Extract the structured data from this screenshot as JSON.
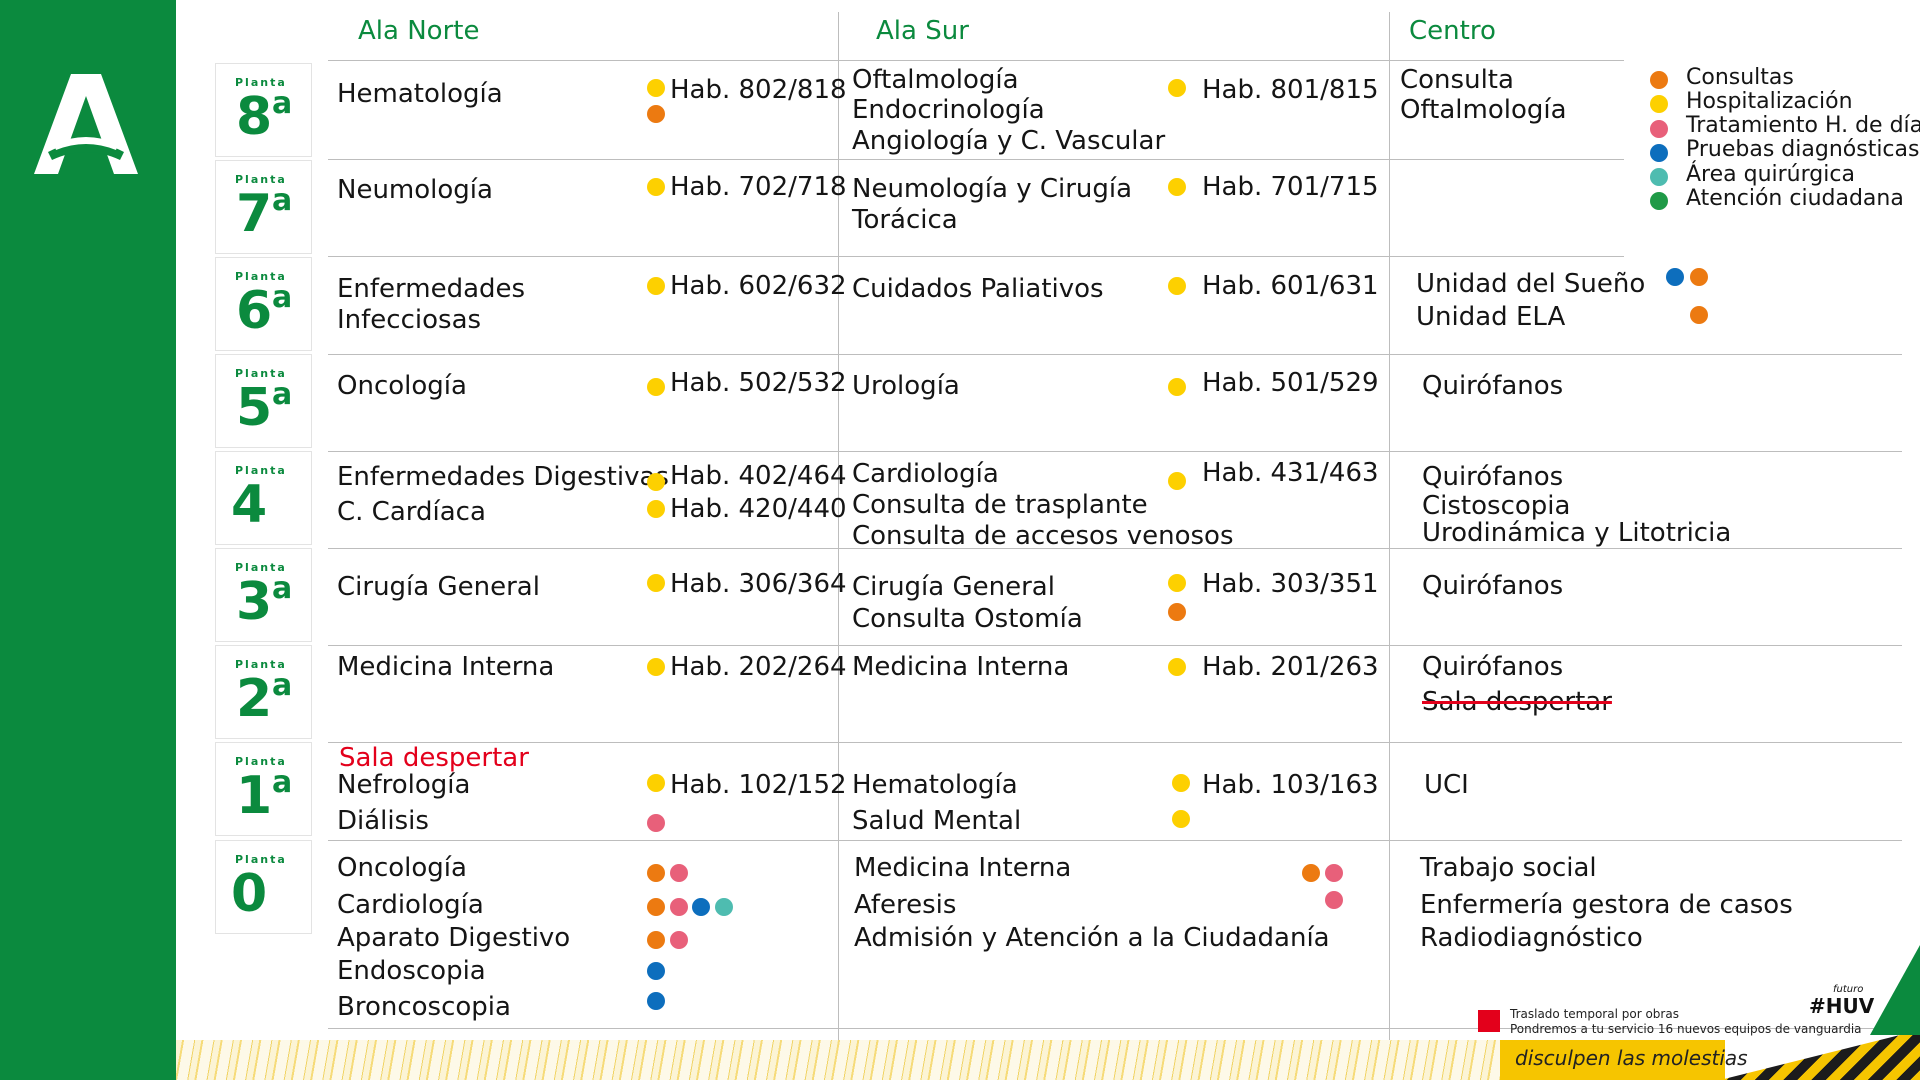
{
  "colors": {
    "green": "#0b8a3e",
    "consultas": "#ec7a11",
    "hospitalizacion": "#fdd000",
    "tratamiento": "#e8607a",
    "pruebas": "#0d6ebd",
    "quirurgica": "#4ebcb0",
    "atencion": "#1f9a47",
    "alert": "#e3001b"
  },
  "logo": {
    "icon": "junta-andalucia-logo-icon"
  },
  "columns": {
    "norte": "Ala Norte",
    "sur": "Ala Sur",
    "centro": "Centro"
  },
  "floor_label": "Planta",
  "floors": [
    {
      "num": "8",
      "sup": "a"
    },
    {
      "num": "7",
      "sup": "a"
    },
    {
      "num": "6",
      "sup": "a"
    },
    {
      "num": "5",
      "sup": "a"
    },
    {
      "num": "4",
      "sup": ""
    },
    {
      "num": "3",
      "sup": "a"
    },
    {
      "num": "2",
      "sup": "a"
    },
    {
      "num": "1",
      "sup": "a"
    },
    {
      "num": "0",
      "sup": ""
    }
  ],
  "legend": [
    {
      "label": "Consultas",
      "color": "orange"
    },
    {
      "label": "Hospitalización",
      "color": "yellow"
    },
    {
      "label": "Tratamiento H. de día",
      "color": "pink"
    },
    {
      "label": "Pruebas diagnósticas",
      "color": "blue"
    },
    {
      "label": "Área quirúrgica",
      "color": "teal"
    },
    {
      "label": "Atención ciudadana",
      "color": "green"
    }
  ],
  "p8": {
    "norte": [
      "Hematología"
    ],
    "norte_hab": "Hab. 802/818",
    "sur": [
      "Oftalmología",
      "Endocrinología",
      "Angiología y C. Vascular"
    ],
    "sur_hab": "Hab. 801/815",
    "centro": [
      "Consulta",
      "Oftalmología"
    ]
  },
  "p7": {
    "norte": [
      "Neumología"
    ],
    "norte_hab": "Hab. 702/718",
    "sur": [
      "Neumología y Cirugía",
      "Torácica"
    ],
    "sur_hab": "Hab. 701/715"
  },
  "p6": {
    "norte": [
      "Enfermedades",
      "Infecciosas"
    ],
    "norte_hab": "Hab. 602/632",
    "sur": [
      "Cuidados Paliativos"
    ],
    "sur_hab": "Hab. 601/631",
    "centro": [
      "Unidad del Sueño",
      "Unidad ELA"
    ]
  },
  "p5": {
    "norte": [
      "Oncología"
    ],
    "norte_hab": "Hab. 502/532",
    "sur": [
      "Urología"
    ],
    "sur_hab": "Hab. 501/529",
    "centro": [
      "Quirófanos"
    ]
  },
  "p4": {
    "norte": [
      "Enfermedades Digestivas",
      "C. Cardíaca"
    ],
    "norte_hab": [
      "Hab. 402/464",
      "Hab. 420/440"
    ],
    "sur": [
      "Cardiología",
      "Consulta de trasplante",
      "Consulta de accesos venosos"
    ],
    "sur_hab": "Hab. 431/463",
    "centro": [
      "Quirófanos",
      "Cistoscopia",
      "Urodinámica y Litotricia"
    ]
  },
  "p3": {
    "norte": [
      "Cirugía General"
    ],
    "norte_hab": "Hab. 306/364",
    "sur": [
      "Cirugía General",
      "Consulta Ostomía"
    ],
    "sur_hab": "Hab. 303/351",
    "centro": [
      "Quirófanos"
    ]
  },
  "p2": {
    "norte": [
      "Medicina Interna"
    ],
    "norte_hab": "Hab. 202/264",
    "sur": [
      "Medicina Interna"
    ],
    "sur_hab": "Hab. 201/263",
    "centro": [
      "Quirófanos"
    ],
    "centro_struck": "Sala despertar"
  },
  "p1": {
    "norte_red": "Sala despertar",
    "norte": [
      "Nefrología",
      "Diálisis"
    ],
    "norte_hab": "Hab. 102/152",
    "sur": [
      "Hematología",
      "Salud Mental"
    ],
    "sur_hab": "Hab. 103/163",
    "centro": [
      "UCI"
    ]
  },
  "p0": {
    "norte": [
      "Oncología",
      "Cardiología",
      "Aparato Digestivo",
      "Endoscopia",
      "Broncoscopia"
    ],
    "sur": [
      "Medicina Interna",
      "Aferesis",
      "Admisión y Atención a la Ciudadanía"
    ],
    "centro": [
      "Trabajo social",
      "Enfermería gestora de casos",
      "Radiodiagnóstico"
    ]
  },
  "footer": {
    "note1": "Traslado temporal por obras",
    "note2": "Pondremos a tu servicio 16 nuevos equipos de vanguardia",
    "banner": "disculpen las molestias",
    "huv_small": "futuro",
    "huv_big": "#HUV"
  }
}
